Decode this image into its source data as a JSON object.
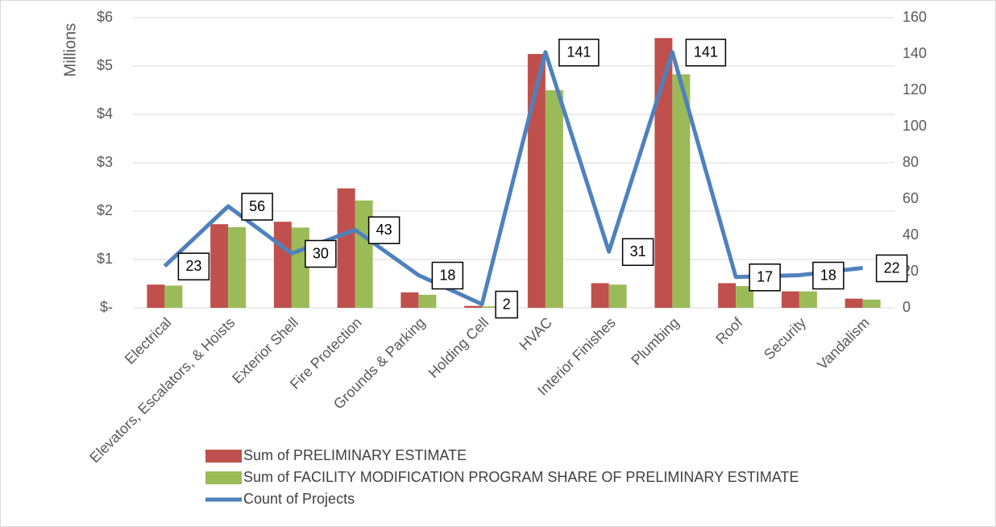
{
  "chart_data": {
    "type": "bar",
    "y_label": "Millions",
    "categories": [
      "Electrical",
      "Elevators, Escalators, & Hoists",
      "Exterior Shell",
      "Fire Protection",
      "Grounds & Parking",
      "Holding Cell",
      "HVAC",
      "Interior Finishes",
      "Plumbing",
      "Roof",
      "Security",
      "Vandalism"
    ],
    "series": [
      {
        "name": "Sum of PRELIMINARY ESTIMATE",
        "type": "bar",
        "color": "#c0504d",
        "values": [
          0.48,
          1.73,
          1.78,
          2.47,
          0.32,
          0.04,
          5.25,
          0.51,
          5.58,
          0.51,
          0.34,
          0.19
        ]
      },
      {
        "name": "Sum of FACILITY MODIFICATION PROGRAM SHARE OF PRELIMINARY ESTIMATE",
        "type": "bar",
        "color": "#9bbb59",
        "values": [
          0.46,
          1.67,
          1.66,
          2.22,
          0.27,
          0.03,
          4.5,
          0.48,
          4.83,
          0.45,
          0.34,
          0.17
        ]
      },
      {
        "name": "Count of Projects",
        "type": "line",
        "axis": "y2",
        "color": "#4f81bd",
        "values": [
          23,
          56,
          30,
          43,
          18,
          2,
          141,
          31,
          141,
          17,
          18,
          22
        ]
      }
    ],
    "ylim": [
      0,
      6
    ],
    "yticks": [
      {
        "value": 0,
        "label": "$-"
      },
      {
        "value": 1,
        "label": "$1"
      },
      {
        "value": 2,
        "label": "$2"
      },
      {
        "value": 3,
        "label": "$3"
      },
      {
        "value": 4,
        "label": "$4"
      },
      {
        "value": 5,
        "label": "$5"
      },
      {
        "value": 6,
        "label": "$6"
      }
    ],
    "y2lim": [
      0,
      160
    ],
    "y2ticks": [
      0,
      20,
      40,
      60,
      80,
      100,
      120,
      140,
      160
    ],
    "grid": true,
    "legend": "bottom"
  }
}
